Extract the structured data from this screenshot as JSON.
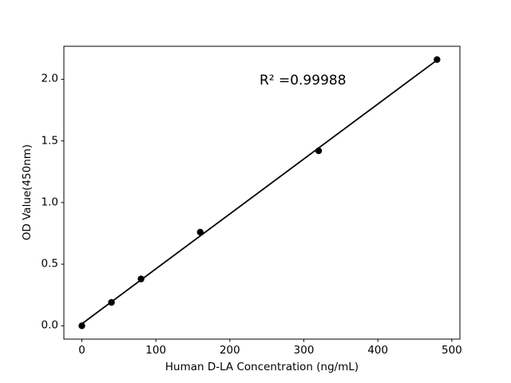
{
  "chart_data": {
    "type": "scatter",
    "title": "",
    "xlabel": "Human D-LA Concentration (ng/mL)",
    "ylabel": "OD Value(450nm)",
    "x": [
      0,
      40,
      80,
      160,
      320,
      480
    ],
    "y": [
      0.0,
      0.19,
      0.38,
      0.76,
      1.42,
      2.16
    ],
    "fit_line": {
      "x": [
        0,
        480
      ],
      "y": [
        0.016,
        2.156
      ]
    },
    "annotation": {
      "text": "R² =0.99988",
      "x": 240,
      "y": 1.95
    },
    "xticks": {
      "values": [
        0,
        100,
        200,
        300,
        400,
        500
      ],
      "labels": [
        "0",
        "100",
        "200",
        "300",
        "400",
        "500"
      ]
    },
    "yticks": {
      "values": [
        0,
        0.5,
        1.0,
        1.5,
        2.0
      ],
      "labels": [
        "0.0",
        "0.5",
        "1.0",
        "1.5",
        "2.0"
      ]
    },
    "xlim": [
      -24.3,
      510.9
    ],
    "ylim": [
      -0.108,
      2.268
    ],
    "grid": false,
    "legend": "none",
    "colors": {
      "marker": "#000000",
      "line": "#000000",
      "axis": "#000000",
      "text": "#000000",
      "background": "#ffffff"
    }
  }
}
